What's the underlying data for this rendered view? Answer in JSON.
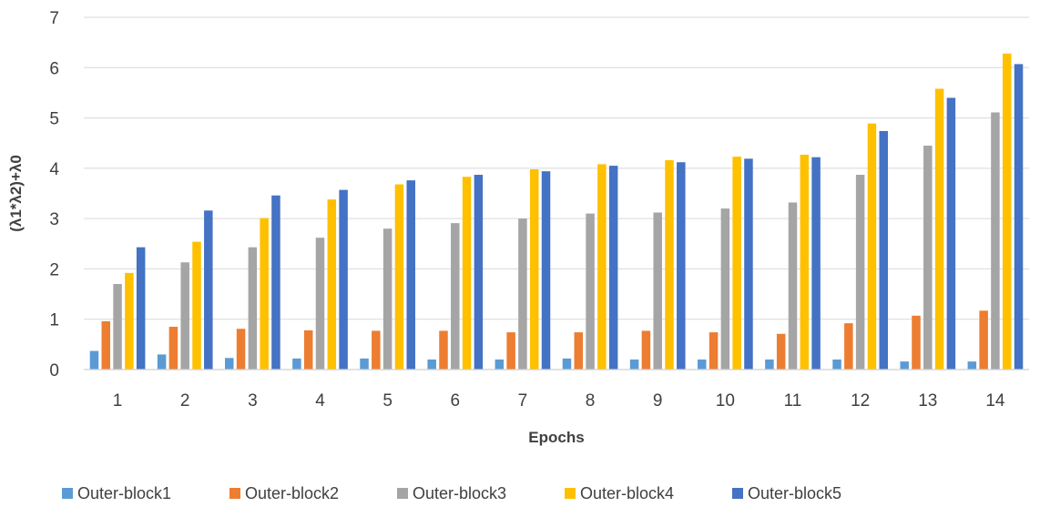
{
  "chart_data": {
    "type": "bar",
    "xlabel": "Epochs",
    "ylabel": "(λ1*λ2)+λ0",
    "ylim": [
      0,
      7
    ],
    "yticks": [
      "0",
      "1",
      "2",
      "3",
      "4",
      "5",
      "6",
      "7"
    ],
    "categories": [
      "1",
      "2",
      "3",
      "4",
      "5",
      "6",
      "7",
      "8",
      "9",
      "10",
      "11",
      "12",
      "13",
      "14"
    ],
    "grid": "horizontal",
    "legend_position": "bottom",
    "series": [
      {
        "name": "Outer-block1",
        "color": "#5b9bd5",
        "values": [
          0.37,
          0.3,
          0.23,
          0.22,
          0.22,
          0.2,
          0.2,
          0.22,
          0.2,
          0.2,
          0.2,
          0.2,
          0.16,
          0.16
        ]
      },
      {
        "name": "Outer-block2",
        "color": "#ed7d31",
        "values": [
          0.96,
          0.85,
          0.81,
          0.78,
          0.77,
          0.77,
          0.74,
          0.74,
          0.77,
          0.74,
          0.71,
          0.92,
          1.07,
          1.17
        ]
      },
      {
        "name": "Outer-block3",
        "color": "#a5a5a5",
        "values": [
          1.7,
          2.13,
          2.43,
          2.62,
          2.8,
          2.91,
          3.0,
          3.1,
          3.12,
          3.2,
          3.32,
          3.87,
          4.45,
          5.11
        ]
      },
      {
        "name": "Outer-block4",
        "color": "#ffc000",
        "values": [
          1.92,
          2.54,
          3.01,
          3.38,
          3.68,
          3.83,
          3.98,
          4.08,
          4.16,
          4.23,
          4.27,
          4.89,
          5.58,
          6.28
        ]
      },
      {
        "name": "Outer-block5",
        "color": "#4472c4",
        "values": [
          2.43,
          3.16,
          3.46,
          3.57,
          3.76,
          3.87,
          3.94,
          4.05,
          4.12,
          4.19,
          4.22,
          4.74,
          5.4,
          6.07
        ]
      }
    ]
  }
}
